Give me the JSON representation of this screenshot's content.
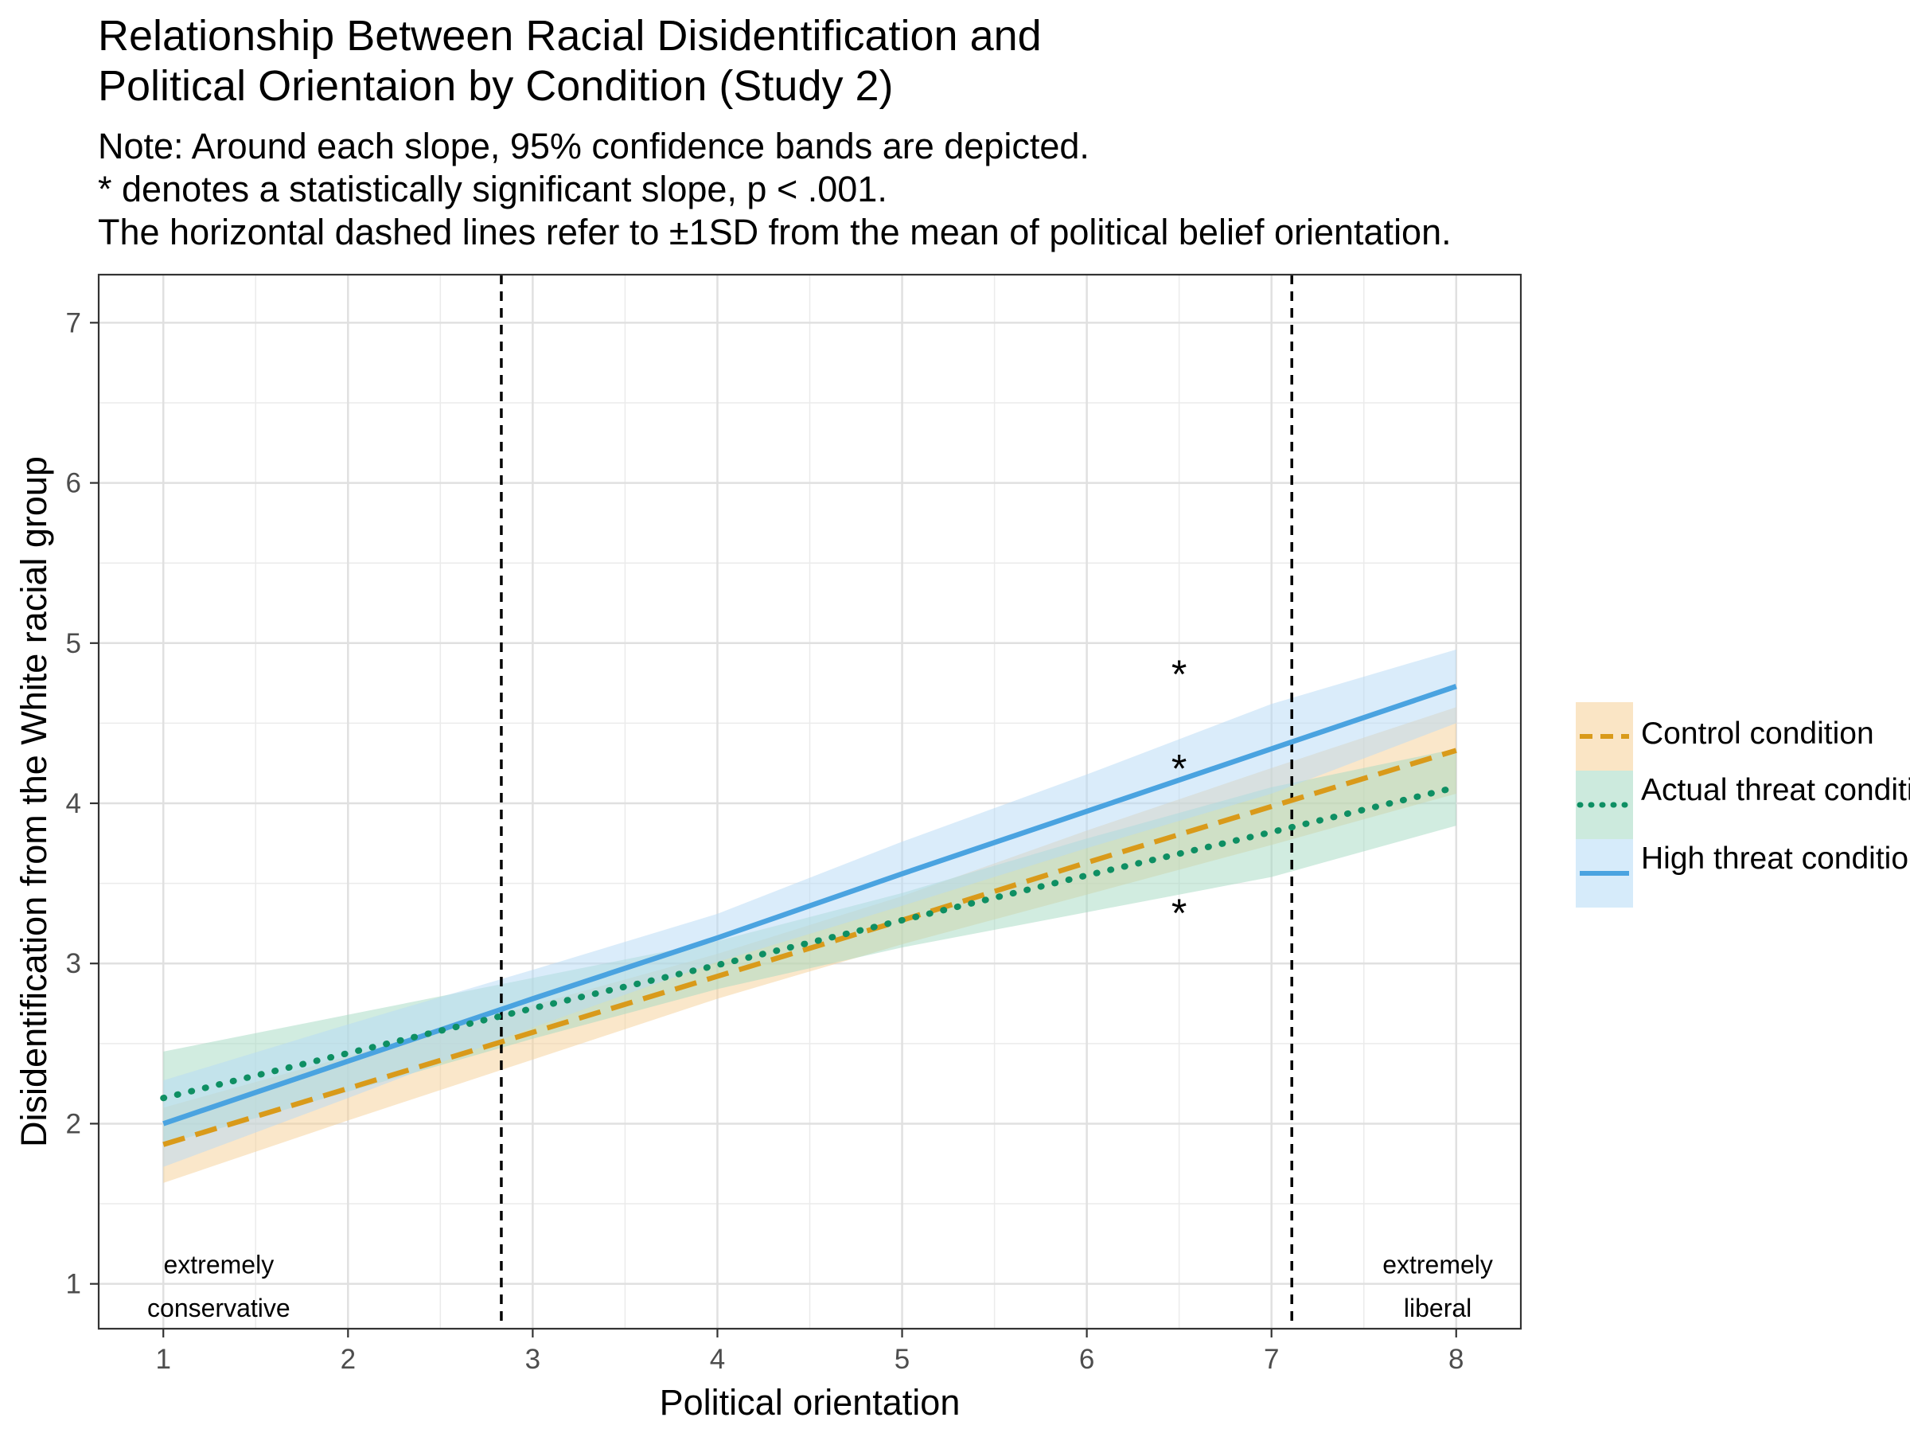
{
  "title_line1": "Relationship Between Racial Disidentification and",
  "title_line2": "Political Orientaion by Condition (Study 2)",
  "note_line1": "Note: Around each slope, 95% confidence bands are depicted.",
  "note_line2": "* denotes a statistically significant slope, p < .001.",
  "note_line3": "The horizontal dashed lines refer to ±1SD from the mean of political belief orientation.",
  "chart_data": {
    "type": "line",
    "xlabel": "Political orientation",
    "ylabel": "Disidentification from the White racial group",
    "xlim": [
      0.65,
      8.35
    ],
    "ylim": [
      0.72,
      7.3
    ],
    "xticks": [
      1,
      2,
      3,
      4,
      5,
      6,
      7,
      8
    ],
    "yticks": [
      1,
      2,
      3,
      4,
      5,
      6,
      7
    ],
    "grid": true,
    "reference_lines_x": [
      2.83,
      7.11
    ],
    "significance_marker": "*",
    "significance_marks": [
      {
        "x": 6.5,
        "y": 4.85
      },
      {
        "x": 6.5,
        "y": 4.26
      },
      {
        "x": 6.5,
        "y": 3.36
      }
    ],
    "annotations": [
      {
        "x": 1.3,
        "y": 1.12,
        "text": "extremely"
      },
      {
        "x": 1.3,
        "y": 0.85,
        "text": "conservative"
      },
      {
        "x": 7.9,
        "y": 1.12,
        "text": "extremely"
      },
      {
        "x": 7.9,
        "y": 0.85,
        "text": "liberal"
      }
    ],
    "series": [
      {
        "name": "Control condition",
        "color": "#D99A1A",
        "band_color": "#F5CF95",
        "line_style": "dashed",
        "x": [
          1,
          2,
          3,
          4,
          5,
          6,
          7,
          8
        ],
        "y": [
          1.87,
          2.22,
          2.57,
          2.92,
          3.27,
          3.63,
          3.98,
          4.33
        ],
        "lower": [
          1.63,
          2.02,
          2.4,
          2.78,
          3.12,
          3.43,
          3.74,
          4.06
        ],
        "upper": [
          2.1,
          2.42,
          2.74,
          3.06,
          3.42,
          3.83,
          4.22,
          4.6
        ]
      },
      {
        "name": "Actual threat condition",
        "color": "#0E8F63",
        "band_color": "#A3D9C1",
        "line_style": "dotted",
        "x": [
          1,
          2,
          3,
          4,
          5,
          6,
          7,
          8
        ],
        "y": [
          2.16,
          2.44,
          2.72,
          2.99,
          3.27,
          3.55,
          3.82,
          4.1
        ],
        "lower": [
          1.87,
          2.2,
          2.53,
          2.84,
          3.1,
          3.32,
          3.54,
          3.86
        ],
        "upper": [
          2.45,
          2.68,
          2.91,
          3.14,
          3.44,
          3.78,
          4.1,
          4.34
        ]
      },
      {
        "name": "High threat condition",
        "color": "#4AA3E0",
        "band_color": "#B5DAF5",
        "line_style": "solid",
        "x": [
          1,
          2,
          3,
          4,
          5,
          6,
          7,
          8
        ],
        "y": [
          2.0,
          2.39,
          2.78,
          3.16,
          3.56,
          3.95,
          4.34,
          4.73
        ],
        "lower": [
          1.73,
          2.16,
          2.6,
          3.01,
          3.36,
          3.72,
          4.06,
          4.5
        ],
        "upper": [
          2.27,
          2.62,
          2.96,
          3.31,
          3.76,
          4.18,
          4.62,
          4.96
        ]
      }
    ]
  },
  "legend": {
    "items": [
      {
        "label": "Control condition"
      },
      {
        "label": "Actual threat condition"
      },
      {
        "label": "High threat condition"
      }
    ]
  }
}
